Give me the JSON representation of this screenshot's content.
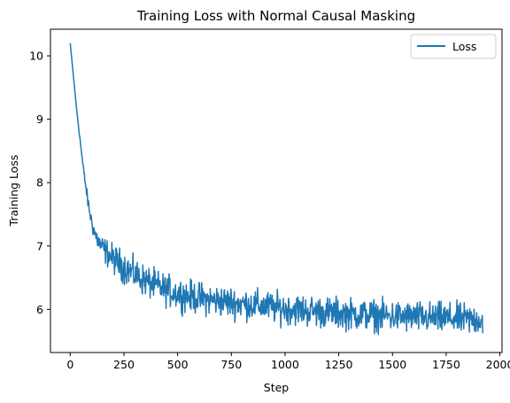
{
  "chart_data": {
    "type": "line",
    "title": "Training Loss with Normal Causal Masking",
    "xlabel": "Step",
    "ylabel": "Training Loss",
    "xlim": [
      -92,
      2010
    ],
    "ylim": [
      5.32,
      10.42
    ],
    "xticks": [
      0,
      250,
      500,
      750,
      1000,
      1250,
      1500,
      1750,
      2000
    ],
    "yticks": [
      6,
      7,
      8,
      9,
      10
    ],
    "grid": false,
    "legend_position": "top-right",
    "series": [
      {
        "name": "Loss",
        "color": "#1f77b4",
        "x": [
          0,
          10,
          20,
          30,
          40,
          50,
          60,
          70,
          80,
          90,
          100,
          110,
          120,
          130,
          140,
          150,
          175,
          200,
          225,
          250,
          300,
          350,
          400,
          450,
          500,
          550,
          600,
          650,
          700,
          750,
          800,
          850,
          900,
          950,
          1000,
          1050,
          1100,
          1150,
          1200,
          1250,
          1300,
          1350,
          1400,
          1450,
          1500,
          1550,
          1600,
          1650,
          1700,
          1750,
          1800,
          1850,
          1900,
          1920
        ],
        "y": [
          10.2,
          9.85,
          9.5,
          9.15,
          8.85,
          8.55,
          8.25,
          8.0,
          7.75,
          7.55,
          7.38,
          7.25,
          7.15,
          7.08,
          7.02,
          6.97,
          6.88,
          6.8,
          6.73,
          6.67,
          6.55,
          6.45,
          6.37,
          6.3,
          6.25,
          6.21,
          6.18,
          6.15,
          6.13,
          6.11,
          6.09,
          6.07,
          6.05,
          6.03,
          6.01,
          6.0,
          5.98,
          5.97,
          5.95,
          5.94,
          5.93,
          5.92,
          5.91,
          5.9,
          5.89,
          5.88,
          5.88,
          5.87,
          5.86,
          5.86,
          5.85,
          5.84,
          5.84,
          5.83
        ],
        "noise_band": [
          0,
          0,
          0,
          0,
          0.02,
          0.03,
          0.04,
          0.05,
          0.06,
          0.07,
          0.08,
          0.09,
          0.1,
          0.1,
          0.11,
          0.12,
          0.13,
          0.14,
          0.15,
          0.15,
          0.15,
          0.15,
          0.15,
          0.15,
          0.15,
          0.15,
          0.15,
          0.15,
          0.15,
          0.15,
          0.15,
          0.15,
          0.15,
          0.15,
          0.15,
          0.15,
          0.15,
          0.15,
          0.15,
          0.15,
          0.15,
          0.15,
          0.15,
          0.15,
          0.15,
          0.15,
          0.15,
          0.15,
          0.15,
          0.15,
          0.15,
          0.15,
          0.15,
          0.15
        ]
      }
    ]
  }
}
